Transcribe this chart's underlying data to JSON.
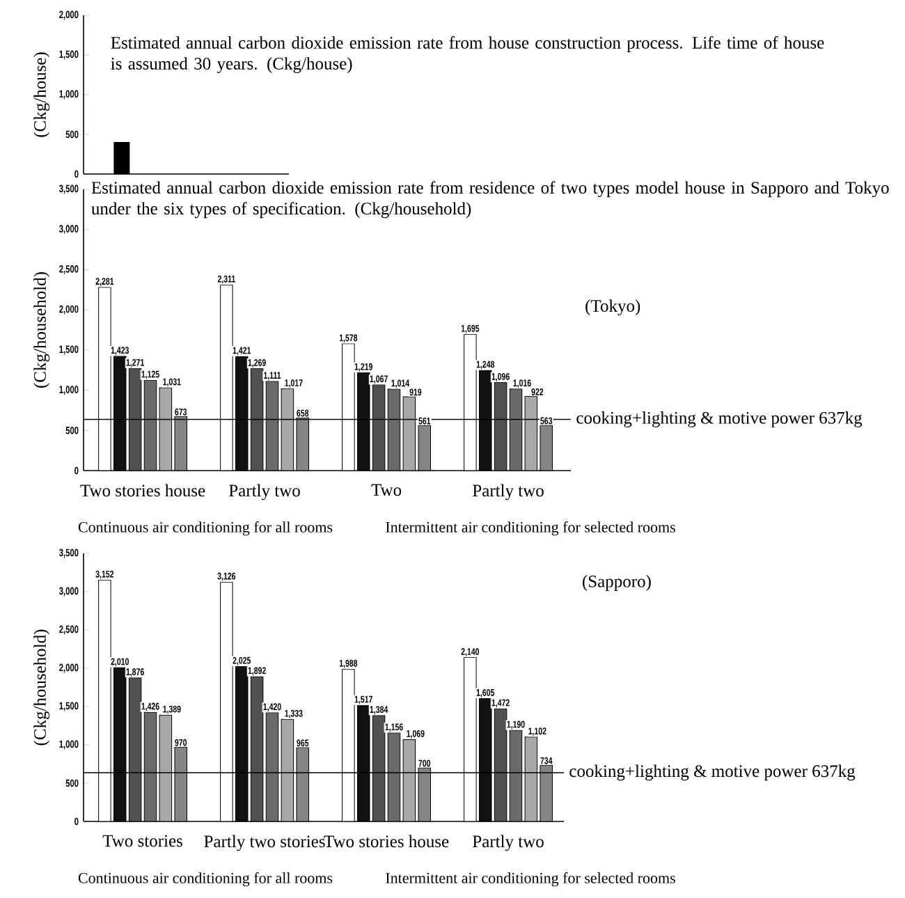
{
  "chart_data": [
    {
      "type": "bar",
      "title": "Estimated annual carbon dioxide  emission rate from house construction process. Life time of house is assumed 30 years.   (Ckg/house)",
      "ylabel": "(Ckg/house)",
      "categories": [
        null
      ],
      "values": [
        400
      ],
      "color": "#000000",
      "ylim": [
        0,
        2000
      ],
      "yticks": [
        0,
        500,
        {
          "value": 1000,
          "label": "1,000"
        },
        {
          "value": 1500,
          "label": "1,500"
        },
        {
          "value": 2000,
          "label": "2,000"
        }
      ],
      "tick_labels": "y"
    },
    {
      "type": "bar",
      "title": "Estimated annual carbon dioxide  emission rate from residence of two types  model house in Sapporo and Tokyo under the six types of specification.  (Ckg/household)",
      "ylabel": "(Ckg/household)",
      "categories": [
        "Two stories house",
        "Partly two",
        "Two",
        "Partly two"
      ],
      "series": [
        {
          "color": "#ffffff",
          "values": [
            2281,
            2311,
            1578,
            1695
          ],
          "value_labels": [
            "2,281",
            "2,311",
            "1,578",
            "1,695"
          ]
        },
        {
          "color": "#111111",
          "values": [
            1423,
            1421,
            1219,
            1248
          ],
          "value_labels": [
            "1,423",
            "1,421",
            "1,219",
            "1,248"
          ]
        },
        {
          "color": "#505050",
          "values": [
            1271,
            1269,
            1067,
            1096
          ],
          "value_labels": [
            "1,271",
            "1,269",
            "1,067",
            "1,096"
          ]
        },
        {
          "color": "#6a6a6a",
          "values": [
            1125,
            1111,
            1014,
            1016
          ],
          "value_labels": [
            "1,125",
            "1,111",
            "1,014",
            "1,016"
          ]
        },
        {
          "color": "#a8a8a8",
          "values": [
            1031,
            1017,
            919,
            922
          ],
          "value_labels": [
            "1,031",
            "1,017",
            "919",
            "922"
          ]
        },
        {
          "color": "#858585",
          "values": [
            673,
            658,
            561,
            563
          ],
          "value_labels": [
            "673",
            "658",
            "561",
            "563"
          ]
        }
      ],
      "ylim": [
        0,
        3500
      ],
      "yticks": [
        0,
        500,
        {
          "value": 1000,
          "label": "1,000"
        },
        {
          "value": 1500,
          "label": "1,500"
        },
        {
          "value": 2000,
          "label": "2,000"
        },
        {
          "value": 2500,
          "label": "2,500"
        },
        {
          "value": 3000,
          "label": "3,000"
        },
        {
          "value": 3500,
          "label": "3,500"
        }
      ],
      "ref_lines": [
        {
          "axis": "y",
          "value": 637,
          "label": "cooking+lighting & motive power  637kg"
        }
      ],
      "annotations": [
        "(Tokyo)",
        "Continuous air conditioning for all rooms",
        "Intermittent air conditioning for selected rooms"
      ]
    },
    {
      "type": "bar",
      "ylabel": "(Ckg/household)",
      "categories": [
        "Two stories",
        "Partly two stories",
        "Two stories house",
        "Partly two"
      ],
      "series": [
        {
          "color": "#ffffff",
          "values": [
            3152,
            3126,
            1988,
            2140
          ],
          "value_labels": [
            "3,152",
            "3,126",
            "1,988",
            "2,140"
          ]
        },
        {
          "color": "#111111",
          "values": [
            2010,
            2025,
            1517,
            1605
          ],
          "value_labels": [
            "2,010",
            "2,025",
            "1,517",
            "1,605"
          ]
        },
        {
          "color": "#505050",
          "values": [
            1876,
            1892,
            1384,
            1472
          ],
          "value_labels": [
            "1,876",
            "1,892",
            "1,384",
            "1,472"
          ]
        },
        {
          "color": "#6a6a6a",
          "values": [
            1426,
            1420,
            1156,
            1190
          ],
          "value_labels": [
            "1,426",
            "1,420",
            "1,156",
            "1,190"
          ]
        },
        {
          "color": "#a8a8a8",
          "values": [
            1389,
            1333,
            1069,
            1102
          ],
          "value_labels": [
            "1,389",
            "1,333",
            "1,069",
            "1,102"
          ]
        },
        {
          "color": "#858585",
          "values": [
            970,
            965,
            700,
            734
          ],
          "value_labels": [
            "970",
            "965",
            "700",
            "734"
          ]
        }
      ],
      "ylim": [
        0,
        3500
      ],
      "yticks": [
        0,
        500,
        {
          "value": 1000,
          "label": "1,000"
        },
        {
          "value": 1500,
          "label": "1,500"
        },
        {
          "value": 2000,
          "label": "2,000"
        },
        {
          "value": 2500,
          "label": "2,500"
        },
        {
          "value": 3000,
          "label": "3,000"
        },
        {
          "value": 3500,
          "label": "3,500"
        }
      ],
      "ref_lines": [
        {
          "axis": "y",
          "value": 637,
          "label": "cooking+lighting & motive power  637kg"
        }
      ],
      "annotations": [
        "(Sapporo)",
        "Continuous air conditioning for all rooms",
        "Intermittent air conditioning for selected rooms"
      ]
    }
  ]
}
